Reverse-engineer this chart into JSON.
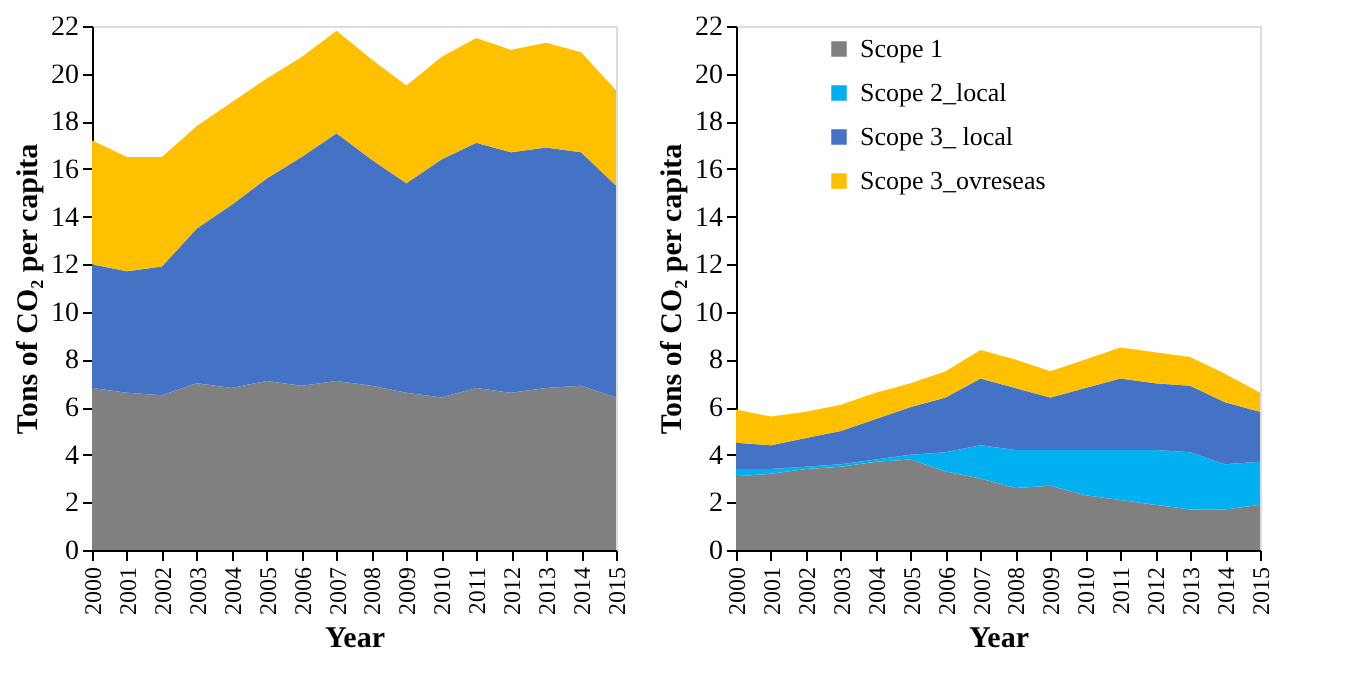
{
  "chart_data": [
    {
      "type": "area",
      "stacked": true,
      "xlabel": "Year",
      "ylabel": "Tons of CO₂ per capita",
      "categories": [
        "2000",
        "2001",
        "2002",
        "2003",
        "2004",
        "2005",
        "2006",
        "2007",
        "2008",
        "2009",
        "2010",
        "2011",
        "2012",
        "2013",
        "2014",
        "2015"
      ],
      "ylim": [
        0,
        22
      ],
      "yticks": [
        0,
        2,
        4,
        6,
        8,
        10,
        12,
        14,
        16,
        18,
        20,
        22
      ],
      "grid": false,
      "series": [
        {
          "color": "#808080",
          "values": [
            6.8,
            6.6,
            6.5,
            7.0,
            6.8,
            7.1,
            6.9,
            7.1,
            6.9,
            6.6,
            6.4,
            6.8,
            6.6,
            6.8,
            6.9,
            6.4
          ]
        },
        {
          "color": "#4472c4",
          "values": [
            5.2,
            5.1,
            5.4,
            6.5,
            7.7,
            8.5,
            9.6,
            10.4,
            9.5,
            8.8,
            10.0,
            10.3,
            10.1,
            10.1,
            9.8,
            8.9
          ]
        },
        {
          "color": "#ffc000",
          "values": [
            5.2,
            4.8,
            4.6,
            4.3,
            4.3,
            4.2,
            4.2,
            4.3,
            4.2,
            4.1,
            4.3,
            4.4,
            4.3,
            4.4,
            4.2,
            4.0
          ]
        }
      ]
    },
    {
      "type": "area",
      "stacked": true,
      "xlabel": "Year",
      "ylabel": "Tons of CO₂ per capita",
      "categories": [
        "2000",
        "2001",
        "2002",
        "2003",
        "2004",
        "2005",
        "2006",
        "2007",
        "2008",
        "2009",
        "2010",
        "2011",
        "2012",
        "2013",
        "2014",
        "2015"
      ],
      "ylim": [
        0,
        22
      ],
      "yticks": [
        0,
        2,
        4,
        6,
        8,
        10,
        12,
        14,
        16,
        18,
        20,
        22
      ],
      "grid": false,
      "legend": "top left",
      "series": [
        {
          "name": "Scope 1",
          "color": "#808080",
          "values": [
            3.1,
            3.2,
            3.4,
            3.5,
            3.7,
            3.8,
            3.3,
            3.0,
            2.6,
            2.7,
            2.3,
            2.1,
            1.9,
            1.7,
            1.7,
            1.9
          ]
        },
        {
          "name": "Scope 2_local",
          "color": "#00b0f0",
          "values": [
            0.3,
            0.2,
            0.1,
            0.1,
            0.1,
            0.2,
            0.8,
            1.4,
            1.6,
            1.5,
            1.9,
            2.1,
            2.3,
            2.4,
            1.9,
            1.8
          ]
        },
        {
          "name": "Scope 3_ local",
          "color": "#4472c4",
          "values": [
            1.1,
            1.0,
            1.2,
            1.4,
            1.7,
            2.0,
            2.3,
            2.8,
            2.6,
            2.2,
            2.6,
            3.0,
            2.8,
            2.8,
            2.6,
            2.1
          ]
        },
        {
          "name": "Scope 3_ovreseas",
          "color": "#ffc000",
          "values": [
            1.4,
            1.2,
            1.1,
            1.1,
            1.1,
            1.0,
            1.1,
            1.2,
            1.2,
            1.1,
            1.2,
            1.3,
            1.3,
            1.2,
            1.2,
            0.8
          ]
        }
      ]
    }
  ]
}
